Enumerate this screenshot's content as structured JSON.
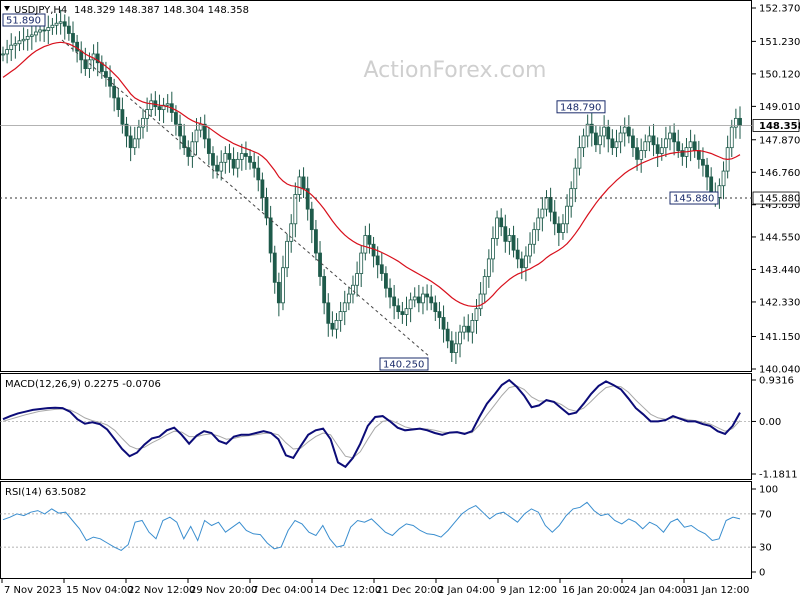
{
  "header": {
    "symbol": "USDJPY,H4",
    "ohlc": "148.329 148.387 148.304 148.358",
    "watermark": "ActionForex.com"
  },
  "chart_data": [
    {
      "type": "candlestick",
      "title": "USDJPY,H4",
      "ylim": [
        140.04,
        152.37
      ],
      "y_ticks": [
        "152.370",
        "151.230",
        "150.120",
        "149.010",
        "147.870",
        "146.760",
        "145.650",
        "144.550",
        "143.440",
        "142.330",
        "141.150",
        "140.040"
      ],
      "x_ticks": [
        "7 Nov 2023",
        "15 Nov 04:00",
        "22 Nov 12:00",
        "29 Nov 20:00",
        "7 Dec 04:00",
        "14 Dec 12:00",
        "21 Dec 20:00",
        "2 Jan 04:00",
        "9 Jan 12:00",
        "16 Jan 20:00",
        "24 Jan 04:00",
        "31 Jan 12:00"
      ],
      "current_price": "148.358",
      "series": [
        {
          "name": "USDJPY,H4",
          "close": [
            150.8,
            150.95,
            151.1,
            151.15,
            151.25,
            151.3,
            151.4,
            151.45,
            151.55,
            151.62,
            151.6,
            151.7,
            151.78,
            151.85,
            151.9,
            151.75,
            151.5,
            151.2,
            150.9,
            150.6,
            150.3,
            150.6,
            150.8,
            150.5,
            150.2,
            150.0,
            149.7,
            149.3,
            148.9,
            148.4,
            148.0,
            147.6,
            147.9,
            148.3,
            148.6,
            148.9,
            149.2,
            149.0,
            148.9,
            149.05,
            149.1,
            148.8,
            148.4,
            148.0,
            147.6,
            147.3,
            147.8,
            148.2,
            148.4,
            147.9,
            147.4,
            147.0,
            146.8,
            147.1,
            147.4,
            147.2,
            146.9,
            147.2,
            147.4,
            147.3,
            147.1,
            146.9,
            146.5,
            145.9,
            145.2,
            144.0,
            143.0,
            142.3,
            143.5,
            144.4,
            145.0,
            146.0,
            146.6,
            146.2,
            145.5,
            144.8,
            144.0,
            143.2,
            142.3,
            141.6,
            141.4,
            141.7,
            142.0,
            142.3,
            142.6,
            142.9,
            143.3,
            144.0,
            144.6,
            144.3,
            143.9,
            143.6,
            143.3,
            142.8,
            142.5,
            142.2,
            142.0,
            141.9,
            142.1,
            142.4,
            142.5,
            142.3,
            142.6,
            142.5,
            142.3,
            142.0,
            141.8,
            141.4,
            141.0,
            140.6,
            140.9,
            141.3,
            141.5,
            141.3,
            141.7,
            142.1,
            142.6,
            143.2,
            143.8,
            144.5,
            145.2,
            144.9,
            144.4,
            144.6,
            144.1,
            143.8,
            143.5,
            143.9,
            144.3,
            144.8,
            145.2,
            145.5,
            145.9,
            145.4,
            145.0,
            144.7,
            145.0,
            145.6,
            146.2,
            146.9,
            147.6,
            148.0,
            148.4,
            148.1,
            147.7,
            148.0,
            148.3,
            147.9,
            147.6,
            147.8,
            148.1,
            148.3,
            148.0,
            147.6,
            147.2,
            147.5,
            147.8,
            148.0,
            147.7,
            147.4,
            147.6,
            147.9,
            148.1,
            147.8,
            147.5,
            147.3,
            147.6,
            147.8,
            147.5,
            147.2,
            147.0,
            146.6,
            146.0,
            145.9,
            146.3,
            146.8,
            147.6,
            148.3,
            148.6,
            148.358
          ]
        },
        {
          "name": "MA",
          "values": [
            150.0,
            150.1,
            150.2,
            150.3,
            150.42,
            150.55,
            150.68,
            150.8,
            150.9,
            150.98,
            151.05,
            151.1,
            151.15,
            151.18,
            151.2,
            151.18,
            151.14,
            151.08,
            151.0,
            150.9,
            150.8,
            150.72,
            150.66,
            150.58,
            150.48,
            150.38,
            150.26,
            150.12,
            149.98,
            149.8,
            149.62,
            149.44,
            149.3,
            149.22,
            149.16,
            149.12,
            149.1,
            149.08,
            149.05,
            149.03,
            149.0,
            148.95,
            148.88,
            148.8,
            148.7,
            148.6,
            148.52,
            148.46,
            148.42,
            148.36,
            148.28,
            148.18,
            148.08,
            147.98,
            147.9,
            147.82,
            147.74,
            147.68,
            147.62,
            147.57,
            147.52,
            147.46,
            147.4,
            147.3,
            147.18,
            147.0,
            146.82,
            146.6,
            146.46,
            146.36,
            146.3,
            146.28,
            146.24,
            146.18,
            146.1,
            145.98,
            145.84,
            145.68,
            145.5,
            145.3,
            145.1,
            144.92,
            144.76,
            144.62,
            144.5,
            144.4,
            144.32,
            144.26,
            144.22,
            144.18,
            144.14,
            144.08,
            144.02,
            143.95,
            143.88,
            143.8,
            143.72,
            143.62,
            143.52,
            143.44,
            143.36,
            143.28,
            143.2,
            143.12,
            143.04,
            142.94,
            142.84,
            142.72,
            142.6,
            142.48,
            142.38,
            142.3,
            142.24,
            142.2,
            142.18,
            142.18,
            142.22,
            142.3,
            142.42,
            142.56,
            142.72,
            142.86,
            142.98,
            143.1,
            143.2,
            143.28,
            143.34,
            143.4,
            143.46,
            143.54,
            143.62,
            143.72,
            143.84,
            143.94,
            144.02,
            144.1,
            144.2,
            144.32,
            144.48,
            144.66,
            144.86,
            145.08,
            145.3,
            145.5,
            145.7,
            145.88,
            146.04,
            146.2,
            146.34,
            146.48,
            146.6,
            146.72,
            146.82,
            146.9,
            146.98,
            147.06,
            147.12,
            147.18,
            147.24,
            147.28,
            147.32,
            147.36,
            147.4,
            147.42,
            147.44,
            147.46,
            147.46,
            147.48,
            147.5,
            147.5,
            147.48,
            147.44,
            147.4,
            147.34,
            147.28,
            147.22,
            147.2,
            147.22,
            147.28,
            147.36
          ]
        }
      ],
      "annotations": [
        "51.890",
        "148.790",
        "140.250",
        "145.880"
      ],
      "level_line": "145.880"
    },
    {
      "type": "line",
      "title": "MACD(12,26,9) 0.2275 -0.0706",
      "ylim": [
        -1.1811,
        0.9316
      ],
      "y_ticks": [
        "0.9316",
        "0.00",
        "-1.1811"
      ],
      "series": [
        {
          "name": "MACD",
          "values": [
            0.05,
            0.12,
            0.18,
            0.22,
            0.26,
            0.28,
            0.3,
            0.31,
            0.3,
            0.22,
            0.05,
            -0.05,
            -0.02,
            -0.06,
            -0.18,
            -0.4,
            -0.62,
            -0.78,
            -0.7,
            -0.52,
            -0.38,
            -0.34,
            -0.2,
            -0.14,
            -0.3,
            -0.5,
            -0.32,
            -0.22,
            -0.26,
            -0.44,
            -0.5,
            -0.34,
            -0.3,
            -0.3,
            -0.26,
            -0.22,
            -0.26,
            -0.4,
            -0.76,
            -0.82,
            -0.55,
            -0.3,
            -0.2,
            -0.16,
            -0.4,
            -0.92,
            -1.02,
            -0.82,
            -0.5,
            -0.1,
            0.1,
            0.12,
            0.0,
            -0.14,
            -0.2,
            -0.18,
            -0.16,
            -0.2,
            -0.26,
            -0.3,
            -0.25,
            -0.24,
            -0.28,
            -0.22,
            0.1,
            0.4,
            0.6,
            0.82,
            0.93,
            0.78,
            0.58,
            0.32,
            0.36,
            0.48,
            0.44,
            0.3,
            0.16,
            0.2,
            0.4,
            0.62,
            0.8,
            0.9,
            0.82,
            0.72,
            0.52,
            0.3,
            0.16,
            0.0,
            0.0,
            0.03,
            0.12,
            0.06,
            0.0,
            0.0,
            -0.06,
            -0.1,
            -0.22,
            -0.28,
            -0.1,
            0.2
          ]
        },
        {
          "name": "Signal",
          "values": [
            0.0,
            0.05,
            0.1,
            0.15,
            0.19,
            0.23,
            0.25,
            0.27,
            0.28,
            0.26,
            0.18,
            0.08,
            0.02,
            -0.02,
            -0.08,
            -0.2,
            -0.38,
            -0.55,
            -0.62,
            -0.58,
            -0.48,
            -0.4,
            -0.3,
            -0.22,
            -0.24,
            -0.34,
            -0.34,
            -0.3,
            -0.28,
            -0.33,
            -0.4,
            -0.38,
            -0.34,
            -0.32,
            -0.3,
            -0.27,
            -0.26,
            -0.3,
            -0.48,
            -0.62,
            -0.6,
            -0.46,
            -0.34,
            -0.26,
            -0.3,
            -0.55,
            -0.78,
            -0.82,
            -0.68,
            -0.4,
            -0.14,
            0.0,
            0.03,
            -0.04,
            -0.12,
            -0.16,
            -0.16,
            -0.17,
            -0.2,
            -0.24,
            -0.25,
            -0.25,
            -0.26,
            -0.25,
            -0.08,
            0.15,
            0.36,
            0.58,
            0.76,
            0.8,
            0.72,
            0.55,
            0.46,
            0.46,
            0.45,
            0.38,
            0.27,
            0.23,
            0.3,
            0.45,
            0.62,
            0.76,
            0.8,
            0.78,
            0.66,
            0.48,
            0.32,
            0.16,
            0.08,
            0.05,
            0.08,
            0.08,
            0.04,
            0.02,
            -0.02,
            -0.06,
            -0.14,
            -0.22,
            -0.16,
            0.02
          ]
        }
      ]
    },
    {
      "type": "line",
      "title": "RSI(14) 63.5082",
      "ylim": [
        0,
        100
      ],
      "y_ticks": [
        "100",
        "70",
        "30",
        "0"
      ],
      "levels": [
        70,
        30
      ],
      "series": [
        {
          "name": "RSI(14)",
          "values": [
            63,
            66,
            70,
            68,
            72,
            74,
            70,
            76,
            71,
            72,
            62,
            52,
            38,
            42,
            40,
            35,
            30,
            26,
            33,
            60,
            62,
            48,
            40,
            62,
            66,
            60,
            40,
            55,
            38,
            62,
            56,
            60,
            48,
            54,
            60,
            50,
            46,
            45,
            35,
            28,
            30,
            50,
            62,
            58,
            48,
            44,
            56,
            40,
            30,
            32,
            54,
            62,
            60,
            64,
            56,
            48,
            44,
            52,
            58,
            56,
            50,
            46,
            45,
            42,
            50,
            60,
            70,
            76,
            80,
            72,
            64,
            70,
            72,
            66,
            60,
            70,
            76,
            72,
            56,
            48,
            56,
            68,
            76,
            78,
            84,
            74,
            68,
            70,
            62,
            58,
            64,
            60,
            52,
            60,
            56,
            48,
            60,
            64,
            54,
            56,
            50,
            46,
            38,
            40,
            62,
            66,
            64
          ]
        }
      ]
    }
  ],
  "colors": {
    "candles": "#1e5a4a",
    "ma": "#d8101c",
    "macd": "#0c0c78",
    "signal": "#a8a8a8",
    "rsi": "#3a8ecf",
    "label_box": "#1b2c6b"
  }
}
